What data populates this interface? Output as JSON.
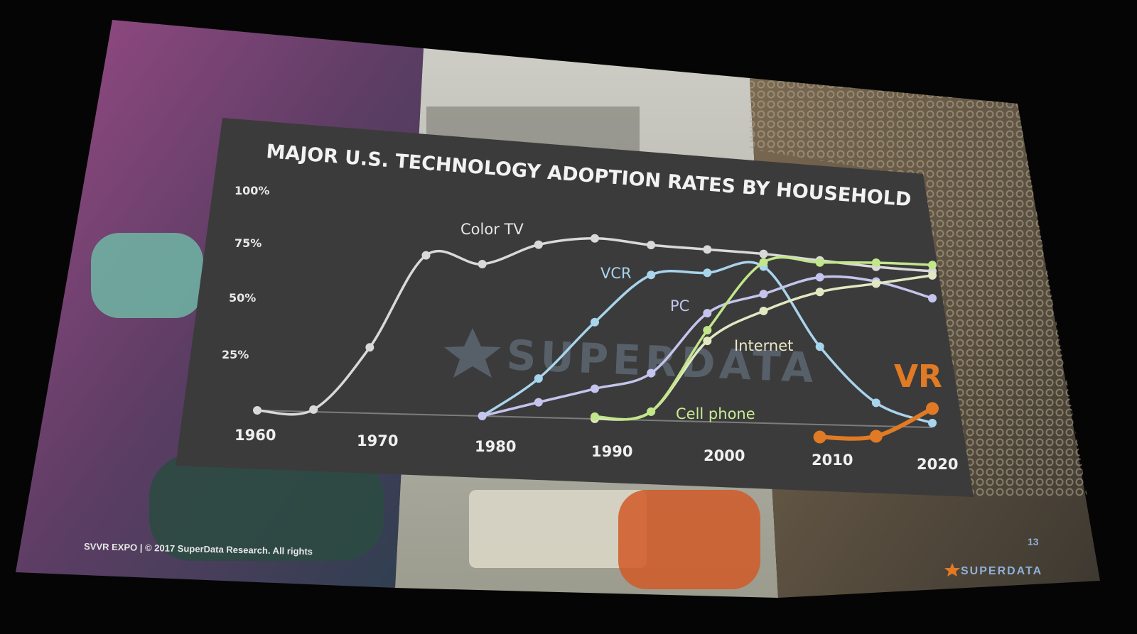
{
  "footer": {
    "left": "SVVR EXPO  |  © 2017 SuperData Research. All rights",
    "page_number": "13",
    "brand": "SUPERDATA"
  },
  "watermark": "SUPERDATA",
  "colors": {
    "color_tv": "#d9d9d9",
    "vcr": "#a8d4ec",
    "pc": "#c4c4ee",
    "internet": "#e2e8c2",
    "cell_phone": "#c2e68a",
    "vr": "#e07a24"
  },
  "chart_data": {
    "type": "line",
    "title": "MAJOR U.S. TECHNOLOGY ADOPTION RATES BY HOUSEHOLD",
    "x_ticks": [
      "1960",
      "1970",
      "1980",
      "1990",
      "2000",
      "2010",
      "2020"
    ],
    "y_ticks": [
      "100%",
      "75%",
      "50%",
      "25%"
    ],
    "xlim": [
      1960,
      2020
    ],
    "ylim": [
      0,
      100
    ],
    "grid": false,
    "series": [
      {
        "name": "Color TV",
        "key": "color_tv",
        "x": [
          1960,
          1965,
          1970,
          1975,
          1980,
          1985,
          1990,
          1995,
          2000,
          2005,
          2010,
          2015,
          2020
        ],
        "y": [
          0,
          1,
          30,
          73,
          70,
          80,
          84,
          82,
          81,
          80,
          78,
          76,
          75
        ]
      },
      {
        "name": "VCR",
        "key": "vcr",
        "x": [
          1980,
          1985,
          1990,
          1995,
          2000,
          2005,
          2010,
          2015,
          2020
        ],
        "y": [
          0,
          18,
          45,
          68,
          70,
          74,
          37,
          11,
          2
        ]
      },
      {
        "name": "PC",
        "key": "pc",
        "x": [
          1980,
          1985,
          1990,
          1995,
          2000,
          2005,
          2010,
          2015,
          2020
        ],
        "y": [
          0,
          7,
          14,
          22,
          51,
          61,
          70,
          69,
          62
        ]
      },
      {
        "name": "Internet",
        "key": "internet",
        "x": [
          1990,
          1995,
          2000,
          2005,
          2010,
          2015,
          2020
        ],
        "y": [
          0,
          4,
          38,
          53,
          63,
          68,
          73
        ]
      },
      {
        "name": "Cell phone",
        "key": "cell_phone",
        "x": [
          1990,
          1995,
          2000,
          2005,
          2010,
          2015,
          2020
        ],
        "y": [
          1,
          4,
          43,
          76,
          77,
          78,
          78
        ]
      },
      {
        "name": "VR",
        "key": "vr",
        "x": [
          2010,
          2015,
          2020
        ],
        "y": [
          -6,
          -5,
          9
        ]
      }
    ]
  }
}
